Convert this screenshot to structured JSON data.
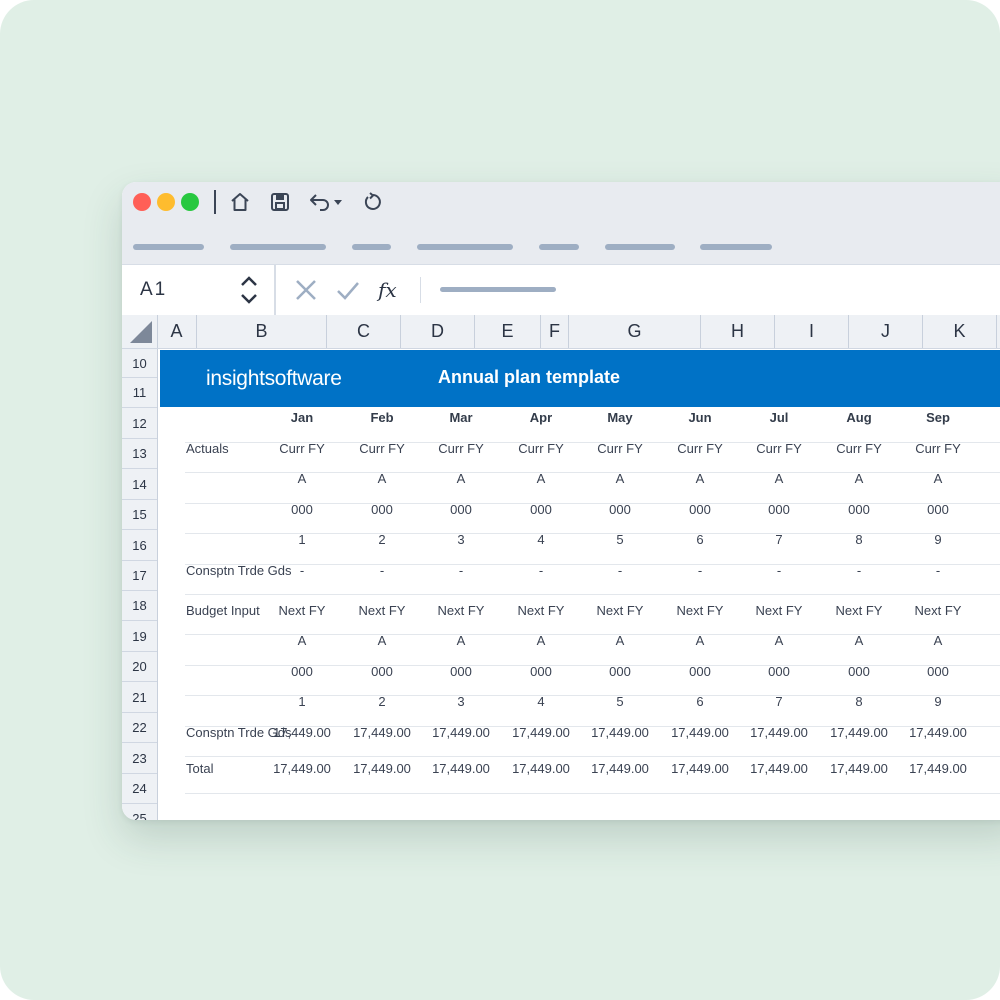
{
  "toolbar": {
    "name_box": "A1",
    "fx_label": "fx"
  },
  "columns": [
    "A",
    "B",
    "C",
    "D",
    "E",
    "F",
    "G",
    "H",
    "I",
    "J",
    "K"
  ],
  "rows": [
    "10",
    "11",
    "12",
    "13",
    "14",
    "15",
    "16",
    "17",
    "18",
    "19",
    "20",
    "21",
    "22",
    "23",
    "24",
    "25"
  ],
  "banner": {
    "logo_light": "insight",
    "logo_bold": "software",
    "title": "Annual plan template"
  },
  "months": [
    "Jan",
    "Feb",
    "Mar",
    "Apr",
    "May",
    "Jun",
    "Jul",
    "Aug",
    "Sep"
  ],
  "actuals": {
    "label": "Actuals",
    "fy": [
      "Curr FY",
      "Curr FY",
      "Curr FY",
      "Curr FY",
      "Curr FY",
      "Curr FY",
      "Curr FY",
      "Curr FY",
      "Curr FY"
    ],
    "type": [
      "A",
      "A",
      "A",
      "A",
      "A",
      "A",
      "A",
      "A",
      "A"
    ],
    "units": [
      "000",
      "000",
      "000",
      "000",
      "000",
      "000",
      "000",
      "000",
      "000"
    ],
    "period": [
      "1",
      "2",
      "3",
      "4",
      "5",
      "6",
      "7",
      "8",
      "9"
    ],
    "consumption_label": "Consptn Trde Gds",
    "consumption": [
      "-",
      "-",
      "-",
      "-",
      "-",
      "-",
      "-",
      "-",
      "-"
    ]
  },
  "budget": {
    "label": "Budget Input",
    "fy": [
      "Next FY",
      "Next FY",
      "Next FY",
      "Next FY",
      "Next FY",
      "Next FY",
      "Next FY",
      "Next FY",
      "Next FY"
    ],
    "type": [
      "A",
      "A",
      "A",
      "A",
      "A",
      "A",
      "A",
      "A",
      "A"
    ],
    "units": [
      "000",
      "000",
      "000",
      "000",
      "000",
      "000",
      "000",
      "000",
      "000"
    ],
    "period": [
      "1",
      "2",
      "3",
      "4",
      "5",
      "6",
      "7",
      "8",
      "9"
    ],
    "consumption_label": "Consptn Trde Gds",
    "consumption": [
      "17,449.00",
      "17,449.00",
      "17,449.00",
      "17,449.00",
      "17,449.00",
      "17,449.00",
      "17,449.00",
      "17,449.00",
      "17,449.00"
    ],
    "total_label": "Total",
    "total": [
      "17,449.00",
      "17,449.00",
      "17,449.00",
      "17,449.00",
      "17,449.00",
      "17,449.00",
      "17,449.00",
      "17,449.00",
      "17,449.00"
    ]
  },
  "colors": {
    "banner": "#0072c6",
    "background": "#e0efe6",
    "close": "#ff5f57",
    "minimize": "#febc2e",
    "maximize": "#28c840"
  }
}
